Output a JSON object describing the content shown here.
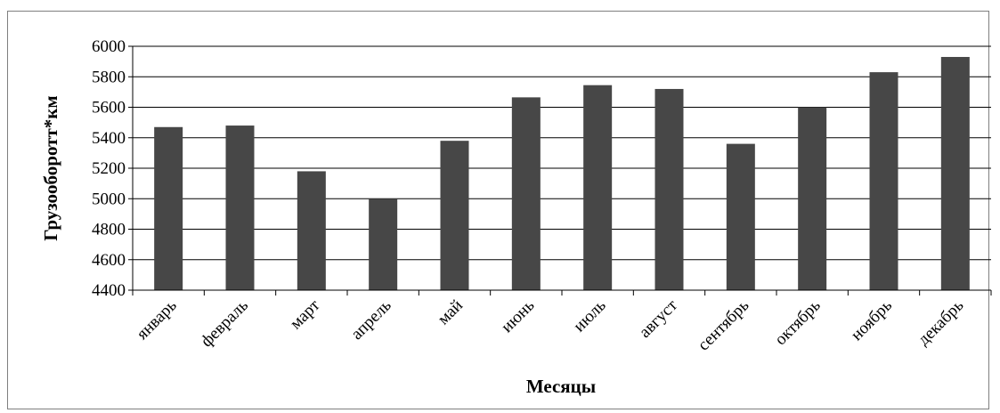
{
  "chart_data": {
    "type": "bar",
    "title": "",
    "xlabel": "Месяцы",
    "ylabel": "Грузооборотт*км",
    "categories": [
      "январь",
      "февраль",
      "март",
      "апрель",
      "май",
      "июнь",
      "июль",
      "август",
      "сентябрь",
      "октябрь",
      "ноябрь",
      "декабрь"
    ],
    "values": [
      5470,
      5480,
      5180,
      5000,
      5380,
      5665,
      5745,
      5720,
      5360,
      5600,
      5830,
      5930
    ],
    "ylim": [
      4400,
      6000
    ],
    "yticks": [
      4400,
      4600,
      4800,
      5000,
      5200,
      5400,
      5600,
      5800,
      6000
    ],
    "ytick_labels": [
      "4400",
      "4600",
      "4800",
      "5000",
      "5200",
      "5400",
      "5600",
      "5800",
      "6000"
    ],
    "grid": true,
    "legend": "none",
    "bar_color": "#474747",
    "grid_color": "#000000"
  }
}
